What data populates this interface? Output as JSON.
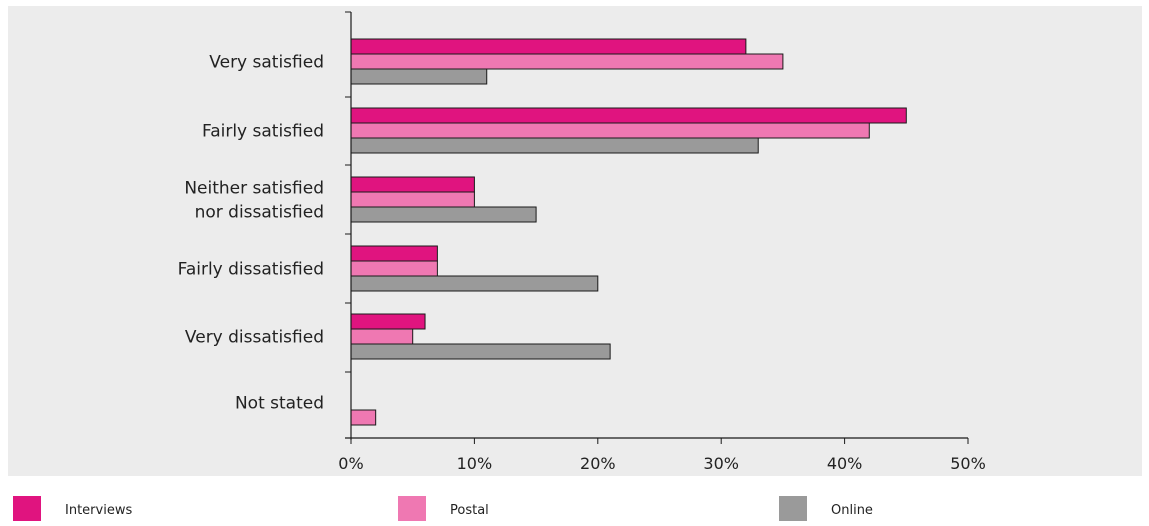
{
  "chart_data": {
    "type": "bar",
    "orientation": "horizontal",
    "categories": [
      [
        "Very satisfied"
      ],
      [
        "Fairly satisfied"
      ],
      [
        "Neither satisfied",
        "nor dissatisfied"
      ],
      [
        "Fairly dissatisfied"
      ],
      [
        "Very dissatisfied"
      ],
      [
        "Not stated"
      ]
    ],
    "series": [
      {
        "name": "Interviews",
        "color": "#e0147f",
        "values": [
          32,
          45,
          10,
          7,
          6,
          0
        ]
      },
      {
        "name": "Postal",
        "color": "#ef78b2",
        "values": [
          35,
          42,
          10,
          7,
          5,
          2
        ]
      },
      {
        "name": "Online",
        "color": "#9a9a9a",
        "values": [
          11,
          33,
          15,
          20,
          21,
          0
        ]
      }
    ],
    "xlim": [
      0,
      50
    ],
    "xticks": [
      0,
      10,
      20,
      30,
      40,
      50
    ],
    "tick_labels": [
      "0%",
      "10%",
      "20%",
      "30%",
      "40%",
      "50%"
    ],
    "grid": false,
    "legend_position": "bottom",
    "background": "#ececec"
  }
}
